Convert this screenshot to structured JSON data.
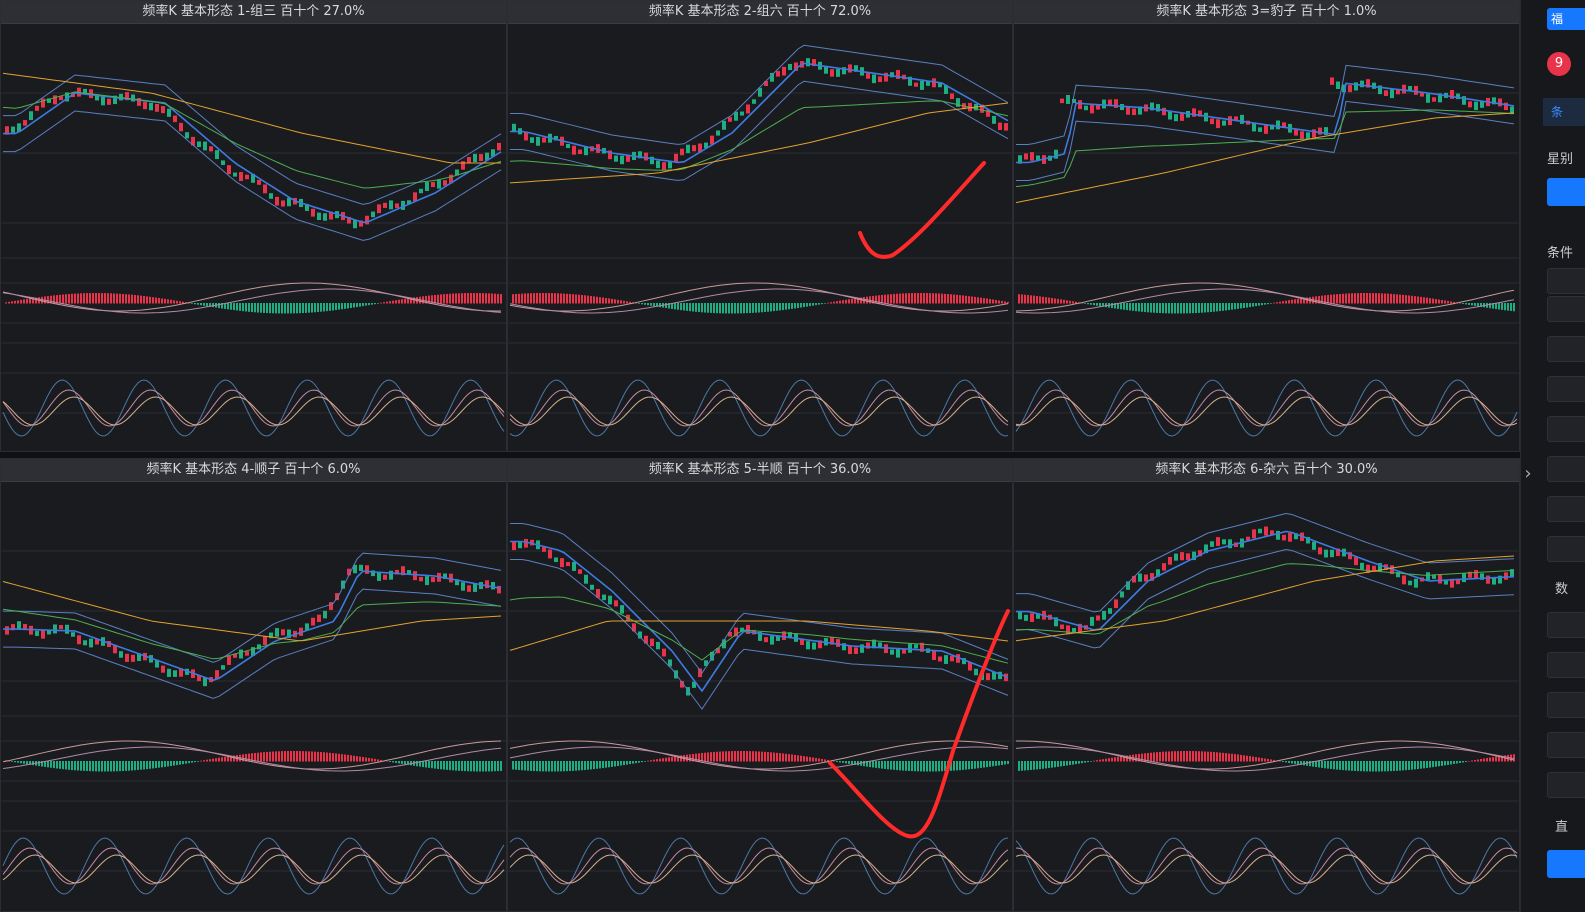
{
  "panels": [
    {
      "title": "频率K  基本形态  1-组三  百十个  27.0%"
    },
    {
      "title": "频率K  基本形态  2-组六  百十个  72.0%"
    },
    {
      "title": "频率K  基本形态  3=豹子  百十个  1.0%"
    },
    {
      "title": "频率K  基本形态  4-顺子  百十个  6.0%"
    },
    {
      "title": "频率K  基本形态  5-半顺  百十个  36.0%"
    },
    {
      "title": "频率K  基本形态  6-杂六  百十个  30.0%"
    }
  ],
  "sidebar": {
    "top_button": "福",
    "badge": "9",
    "tab": "条",
    "label_1": "星别",
    "label_2": "条件",
    "label_3": "数",
    "label_4": "直"
  },
  "colors": {
    "up": "#e8344a",
    "down": "#1fae82",
    "ma_blue": "#3d7be0",
    "ma_green": "#4caf50",
    "ma_orange": "#e2a22f",
    "boll": "#5a7fc2",
    "annotation": "#ff2a2a"
  }
}
